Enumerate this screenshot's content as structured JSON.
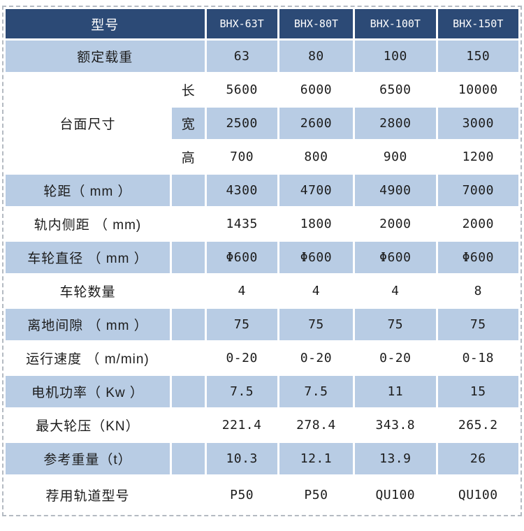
{
  "colors": {
    "header_bg": "#2c4a76",
    "header_text": "#ffffff",
    "row_blue": "#b8cce4",
    "row_white": "#ffffff",
    "body_text": "#1c1c1c",
    "outer_dashed_border": "#b4bac2"
  },
  "table": {
    "model_header": {
      "label": "型号",
      "models": [
        "BHX-63T",
        "BHX-80T",
        "BHX-100T",
        "BHX-150T"
      ]
    },
    "rated_load": {
      "label": "额定载重",
      "values": [
        "63",
        "80",
        "100",
        "150"
      ]
    },
    "platform_size": {
      "label": "台面尺寸",
      "length": {
        "label": "长",
        "values": [
          "5600",
          "6000",
          "6500",
          "10000"
        ]
      },
      "width": {
        "label": "宽",
        "values": [
          "2500",
          "2600",
          "2800",
          "3000"
        ]
      },
      "height": {
        "label": "高",
        "values": [
          "700",
          "800",
          "900",
          "1200"
        ]
      }
    },
    "wheelbase": {
      "label": "轮距（ mm ）",
      "values": [
        "4300",
        "4700",
        "4900",
        "7000"
      ]
    },
    "rail_inner_gauge": {
      "label": "轨内侧距 （ mm)",
      "values": [
        "1435",
        "1800",
        "2000",
        "2000"
      ]
    },
    "wheel_diameter": {
      "label": "车轮直径 （ mm ）",
      "values": [
        "Φ600",
        "Φ600",
        "Φ600",
        "Φ600"
      ]
    },
    "wheel_count": {
      "label": "车轮数量",
      "values": [
        "4",
        "4",
        "4",
        "8"
      ]
    },
    "ground_clearance": {
      "label": "离地间隙 （ mm ）",
      "values": [
        "75",
        "75",
        "75",
        "75"
      ]
    },
    "running_speed": {
      "label": "运行速度 （ m/min)",
      "values": [
        "0-20",
        "0-20",
        "0-20",
        "0-18"
      ]
    },
    "motor_power": {
      "label": "电机功率（ Kw ）",
      "values": [
        "7.5",
        "7.5",
        "11",
        "15"
      ]
    },
    "max_wheel_pressure": {
      "label": "最大轮压（KN）",
      "values": [
        "221.4",
        "278.4",
        "343.8",
        "265.2"
      ]
    },
    "reference_weight": {
      "label": "参考重量（t）",
      "values": [
        "10.3",
        "12.1",
        "13.9",
        "26"
      ]
    },
    "recommended_rail": {
      "label": "荐用轨道型号",
      "values": [
        "P50",
        "P50",
        "QU100",
        "QU100"
      ]
    }
  }
}
